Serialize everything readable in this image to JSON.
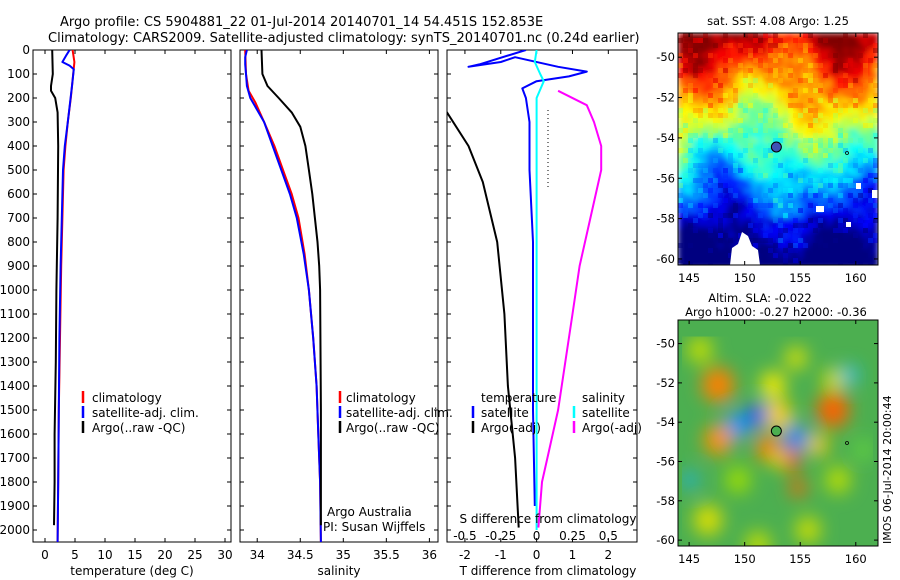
{
  "header": {
    "line1": "Argo profile: CS 5904881_22 01-Jul-2014 20140701_14 54.451S 152.853E",
    "line2": "Climatology: CARS2009. Satellite-adjusted climatology: synTS_20140701.nc (0.24d earlier)"
  },
  "colors": {
    "climatology": "#ff0000",
    "satellite": "#0000ff",
    "argo": "#000000",
    "sal_sat": "#00ffff",
    "sal_argo": "#ff00ff"
  },
  "chart_data": [
    {
      "id": "temperature",
      "type": "line",
      "xlabel": "temperature (deg C)",
      "xlim": [
        -2,
        31
      ],
      "xticks": [
        0,
        5,
        10,
        15,
        20,
        25,
        30
      ],
      "ylim": [
        2050,
        0
      ],
      "yticks": [
        0,
        100,
        200,
        300,
        400,
        500,
        600,
        700,
        800,
        900,
        1000,
        1100,
        1200,
        1300,
        1400,
        1500,
        1600,
        1700,
        1800,
        1900,
        2000
      ],
      "legend": {
        "entries": [
          "climatology",
          "satellite-adj. clim.",
          "Argo(..raw -QC)"
        ]
      },
      "series": [
        {
          "name": "climatology",
          "color": "#ff0000",
          "points": [
            [
              4.6,
              0
            ],
            [
              4.9,
              50
            ],
            [
              4.7,
              100
            ],
            [
              4.3,
              200
            ],
            [
              3.8,
              300
            ],
            [
              3.4,
              400
            ],
            [
              3.1,
              500
            ],
            [
              2.9,
              700
            ],
            [
              2.7,
              900
            ],
            [
              2.5,
              1200
            ],
            [
              2.3,
              1500
            ],
            [
              2.2,
              1800
            ],
            [
              2.1,
              2050
            ]
          ]
        },
        {
          "name": "satellite-adj. clim.",
          "color": "#0000ff",
          "points": [
            [
              4.1,
              0
            ],
            [
              3.6,
              20
            ],
            [
              2.9,
              50
            ],
            [
              4.1,
              65
            ],
            [
              4.8,
              80
            ],
            [
              4.5,
              150
            ],
            [
              3.8,
              300
            ],
            [
              3.3,
              400
            ],
            [
              3.0,
              500
            ],
            [
              2.8,
              700
            ],
            [
              2.6,
              900
            ],
            [
              2.4,
              1200
            ],
            [
              2.3,
              1500
            ],
            [
              2.2,
              1800
            ],
            [
              2.1,
              2050
            ]
          ]
        },
        {
          "name": "Argo(..raw -QC)",
          "color": "#000000",
          "points": [
            [
              1.2,
              0
            ],
            [
              1.3,
              100
            ],
            [
              1.0,
              150
            ],
            [
              1.0,
              170
            ],
            [
              1.7,
              200
            ],
            [
              2.1,
              260
            ],
            [
              2.2,
              400
            ],
            [
              2.1,
              700
            ],
            [
              1.9,
              1000
            ],
            [
              1.8,
              1300
            ],
            [
              1.6,
              1600
            ],
            [
              1.6,
              1800
            ],
            [
              1.5,
              1980
            ]
          ]
        }
      ]
    },
    {
      "id": "salinity",
      "type": "line",
      "xlabel": "salinity",
      "xlim": [
        33.8,
        36.1
      ],
      "xticks": [
        34,
        34.5,
        35,
        35.5,
        36
      ],
      "ylim": [
        2050,
        0
      ],
      "legend": {
        "entries": [
          "climatology",
          "satellite-adj. clim.",
          "Argo(..raw -QC)"
        ]
      },
      "annotation": [
        "Argo Australia",
        "PI: Susan Wijffels"
      ],
      "series": [
        {
          "name": "climatology",
          "color": "#ff0000",
          "points": [
            [
              33.86,
              0
            ],
            [
              33.87,
              100
            ],
            [
              33.9,
              170
            ],
            [
              33.98,
              220
            ],
            [
              34.08,
              300
            ],
            [
              34.2,
              400
            ],
            [
              34.3,
              500
            ],
            [
              34.4,
              600
            ],
            [
              34.48,
              700
            ],
            [
              34.55,
              850
            ],
            [
              34.6,
              1000
            ],
            [
              34.65,
              1200
            ],
            [
              34.69,
              1400
            ],
            [
              34.71,
              1600
            ],
            [
              34.73,
              1800
            ],
            [
              34.74,
              2050
            ]
          ]
        },
        {
          "name": "satellite-adj. clim.",
          "color": "#0000ff",
          "points": [
            [
              33.88,
              0
            ],
            [
              33.86,
              30
            ],
            [
              33.86,
              60
            ],
            [
              33.87,
              100
            ],
            [
              33.88,
              150
            ],
            [
              33.92,
              200
            ],
            [
              34.0,
              250
            ],
            [
              34.08,
              300
            ],
            [
              34.18,
              400
            ],
            [
              34.28,
              500
            ],
            [
              34.38,
              600
            ],
            [
              34.46,
              700
            ],
            [
              34.54,
              850
            ],
            [
              34.6,
              1000
            ],
            [
              34.65,
              1200
            ],
            [
              34.69,
              1400
            ],
            [
              34.71,
              1600
            ],
            [
              34.73,
              1800
            ],
            [
              34.74,
              2050
            ]
          ]
        },
        {
          "name": "Argo(..raw -QC)",
          "color": "#000000",
          "points": [
            [
              34.05,
              0
            ],
            [
              34.06,
              100
            ],
            [
              34.12,
              150
            ],
            [
              34.25,
              200
            ],
            [
              34.4,
              260
            ],
            [
              34.5,
              320
            ],
            [
              34.56,
              400
            ],
            [
              34.6,
              500
            ],
            [
              34.64,
              600
            ],
            [
              34.67,
              700
            ],
            [
              34.7,
              800
            ],
            [
              34.72,
              900
            ],
            [
              34.73,
              1000
            ],
            [
              34.74,
              1500
            ],
            [
              34.74,
              1980
            ]
          ]
        }
      ]
    },
    {
      "id": "difference",
      "type": "line",
      "xlabel": "T difference from climatology",
      "xlabel2": "S difference from climatology",
      "xlim": [
        -2.5,
        2.8
      ],
      "xticks": [
        -2,
        -1,
        0,
        1,
        2
      ],
      "s_ticks": [
        -0.5,
        -0.25,
        0,
        0.25,
        0.5
      ],
      "s_tick_labels": [
        "-0.5",
        "-0.25",
        "0",
        "0.25",
        "0.5"
      ],
      "ylim": [
        2050,
        0
      ],
      "legend": {
        "temperature_header": "temperature",
        "salinity_header": "salinity",
        "entries": [
          "satellite",
          "Argo(-adj)",
          "satellite",
          "Argo(-adj)"
        ]
      },
      "series": [
        {
          "name": "satellite",
          "color": "#0000ff",
          "points": [
            [
              -0.3,
              0
            ],
            [
              -1.6,
              60
            ],
            [
              -1.9,
              70
            ],
            [
              -1.0,
              50
            ],
            [
              -0.6,
              30
            ],
            [
              0.6,
              70
            ],
            [
              1.4,
              90
            ],
            [
              0.9,
              110
            ],
            [
              0.0,
              130
            ],
            [
              -0.4,
              160
            ],
            [
              -0.3,
              200
            ],
            [
              -0.2,
              300
            ],
            [
              -0.2,
              500
            ],
            [
              -0.1,
              800
            ],
            [
              -0.1,
              1100
            ],
            [
              -0.1,
              1500
            ],
            [
              -0.05,
              1900
            ]
          ]
        },
        {
          "name": "Argo(-adj)",
          "color": "#000000",
          "points": [
            [
              -3.4,
              180
            ],
            [
              -2.5,
              260
            ],
            [
              -1.9,
              400
            ],
            [
              -1.5,
              550
            ],
            [
              -1.1,
              800
            ],
            [
              -0.9,
              1100
            ],
            [
              -0.8,
              1400
            ],
            [
              -0.6,
              1700
            ],
            [
              -0.5,
              1990
            ]
          ]
        },
        {
          "name": "satellite",
          "color": "#00ffff",
          "points": [
            [
              0.0,
              0
            ],
            [
              -0.05,
              50
            ],
            [
              0.1,
              100
            ],
            [
              0.2,
              130
            ],
            [
              0.0,
              200
            ],
            [
              0.0,
              400
            ],
            [
              0.0,
              800
            ],
            [
              0.0,
              1200
            ],
            [
              0.0,
              1600
            ],
            [
              0.0,
              2000
            ]
          ]
        },
        {
          "name": "Argo(-adj)",
          "color": "#ff00ff",
          "points": [
            [
              0.6,
              170
            ],
            [
              1.4,
              230
            ],
            [
              1.6,
              300
            ],
            [
              1.8,
              400
            ],
            [
              1.8,
              500
            ],
            [
              1.5,
              700
            ],
            [
              1.2,
              900
            ],
            [
              1.0,
              1100
            ],
            [
              0.8,
              1300
            ],
            [
              0.6,
              1500
            ],
            [
              0.3,
              1700
            ],
            [
              0.15,
              1800
            ],
            [
              0.05,
              1990
            ]
          ]
        }
      ]
    },
    {
      "id": "sst-map",
      "type": "heatmap",
      "title": "sat. SST: 4.08 Argo: 1.25",
      "xlim": [
        144,
        162
      ],
      "ylim": [
        -60.3,
        -48.8
      ],
      "xticks": [
        145,
        150,
        155,
        160
      ],
      "yticks": [
        -50,
        -52,
        -54,
        -56,
        -58,
        -60
      ],
      "argo_position": [
        152.853,
        -54.451
      ]
    },
    {
      "id": "sla-map",
      "type": "heatmap",
      "title": "Altim. SLA: -0.022",
      "subtitle": "Argo h1000: -0.27 h2000: -0.36",
      "xlim": [
        144,
        162
      ],
      "ylim": [
        -60.3,
        -48.8
      ],
      "xticks": [
        145,
        150,
        155,
        160
      ],
      "yticks": [
        -50,
        -52,
        -54,
        -56,
        -58,
        -60
      ],
      "argo_position": [
        152.853,
        -54.451
      ],
      "side_label": "IMOS 06-Jul-2014 20:00:44"
    }
  ]
}
